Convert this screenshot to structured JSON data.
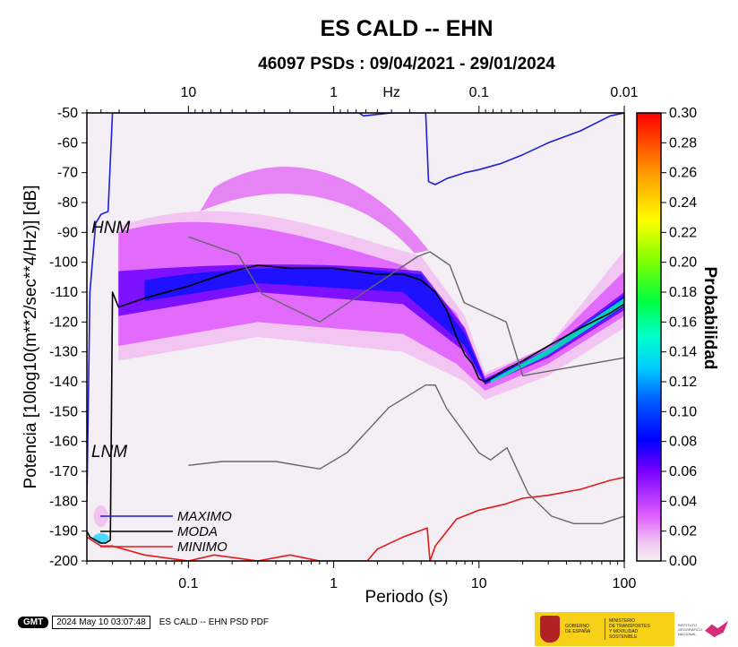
{
  "header": {
    "title": "ES CALD -- EHN",
    "subtitle": "46097 PSDs : 09/04/2021 - 29/01/2024"
  },
  "chart_data": {
    "type": "heatmap",
    "title": "ES CALD -- EHN",
    "subtitle": "46097 PSDs : 09/04/2021 - 29/01/2024",
    "xlabel": "Periodo (s)",
    "xscale": "log",
    "xlim": [
      0.02,
      100
    ],
    "xticks": [
      "0.1",
      "1",
      "10",
      "100"
    ],
    "x2label": "Hz",
    "x2ticks": [
      "10",
      "1",
      "0.1",
      "0.01"
    ],
    "ylabel": "Potencia [10log10(m**2/sec**4/Hz)] [dB]",
    "ylim": [
      -200,
      -50
    ],
    "yticks": [
      "-200",
      "-190",
      "-180",
      "-170",
      "-160",
      "-150",
      "-140",
      "-130",
      "-120",
      "-110",
      "-100",
      "-90",
      "-80",
      "-70",
      "-60",
      "-50"
    ],
    "colorbar": {
      "label": "Probabilidad",
      "range": [
        0.0,
        0.3
      ],
      "ticks": [
        "0.00",
        "0.02",
        "0.04",
        "0.06",
        "0.08",
        "0.10",
        "0.12",
        "0.14",
        "0.16",
        "0.18",
        "0.20",
        "0.22",
        "0.24",
        "0.26",
        "0.28",
        "0.30"
      ]
    },
    "model_labels": [
      "HNM",
      "LNM"
    ],
    "legend": {
      "position": "bottom-left",
      "entries": [
        "MAXIMO",
        "MODA",
        "MINIMO"
      ]
    },
    "colors": {
      "MAXIMO": "#1f1fd6",
      "MODA": "#000000",
      "MINIMO": "#e61919",
      "models": "#666666"
    },
    "series": [
      {
        "name": "MAXIMO",
        "x": [
          0.02,
          0.021,
          0.023,
          0.025,
          0.028,
          0.03,
          0.05,
          0.1,
          0.3,
          1,
          1.5,
          1.6,
          2.5,
          3,
          4.3,
          4.5,
          5,
          6,
          8,
          10,
          14,
          20,
          30,
          50,
          80,
          100
        ],
        "y": [
          -180,
          -110,
          -87,
          -84,
          -83,
          -50,
          -50,
          -50,
          -50,
          -50,
          -50,
          -51,
          -50,
          -50,
          -50,
          -73,
          -74,
          -72,
          -70,
          -69,
          -67,
          -64,
          -60,
          -56,
          -51,
          -50
        ]
      },
      {
        "name": "MODA",
        "x": [
          0.02,
          0.021,
          0.023,
          0.025,
          0.027,
          0.029,
          0.03,
          0.033,
          0.05,
          0.1,
          0.2,
          0.3,
          0.5,
          1,
          2,
          3,
          4,
          5,
          6,
          7,
          8,
          9,
          10,
          11,
          12,
          15,
          20,
          30,
          50,
          80,
          100
        ],
        "y": [
          -190,
          -192,
          -193,
          -194,
          -194,
          -193,
          -110,
          -115,
          -112,
          -108,
          -103,
          -101,
          -102,
          -102,
          -104,
          -104,
          -106,
          -110,
          -116,
          -125,
          -131,
          -134,
          -139,
          -140,
          -139,
          -136,
          -133,
          -128,
          -122,
          -117,
          -114
        ]
      },
      {
        "name": "MINIMO",
        "x": [
          0.02,
          0.025,
          0.03,
          0.05,
          0.1,
          0.15,
          0.3,
          0.5,
          0.8,
          1.5,
          1.7,
          2,
          3,
          4.4,
          4.6,
          5,
          7,
          10,
          15,
          20,
          30,
          50,
          80,
          100
        ],
        "y": [
          -192,
          -195,
          -195,
          -198,
          -200,
          -198,
          -200,
          -198,
          -200,
          -200,
          -200,
          -196,
          -192,
          -189,
          -200,
          -195,
          -186,
          -183,
          -181,
          -179,
          -178,
          -176,
          -173,
          -172
        ]
      },
      {
        "name": "HNM",
        "x": [
          0.1,
          0.22,
          0.32,
          0.8,
          3.8,
          4.6,
          6.3,
          7.9,
          15.4,
          20,
          100
        ],
        "y": [
          -91.5,
          -97.4,
          -110.5,
          -120.0,
          -98.0,
          -96.5,
          -101.0,
          -113.5,
          -120.0,
          -138.0,
          -132.0
        ]
      },
      {
        "name": "LNM",
        "x": [
          0.1,
          0.17,
          0.4,
          0.8,
          1.24,
          2.4,
          4.3,
          5,
          6,
          10,
          12,
          15.6,
          21.9,
          31.6,
          45,
          70,
          100
        ],
        "y": [
          -168.0,
          -166.7,
          -166.7,
          -169.2,
          -163.7,
          -148.6,
          -141.1,
          -141.1,
          -149.0,
          -163.8,
          -166.2,
          -162.1,
          -177.5,
          -185.0,
          -187.5,
          -187.5,
          -185.0
        ]
      }
    ],
    "density_bands": [
      {
        "x": [
          0.033,
          100
        ],
        "center": [
          -107,
          -114
        ],
        "note": "main"
      }
    ]
  },
  "footer": {
    "logo": "GMT",
    "timestamp": "2024 May 10 03:07:48",
    "caption": "ES CALD -- EHN PSD PDF"
  },
  "banner": {
    "gov_line1": "GOBIERNO",
    "gov_line2": "DE ESPAÑA",
    "ministry_line1": "MINISTERIO",
    "ministry_line2": "DE TRANSPORTES",
    "ministry_line3": "Y MOVILIDAD SOSTENIBLE",
    "ign_line1": "INSTITUTO",
    "ign_line2": "GEOGRÁFICO",
    "ign_line3": "NACIONAL"
  }
}
